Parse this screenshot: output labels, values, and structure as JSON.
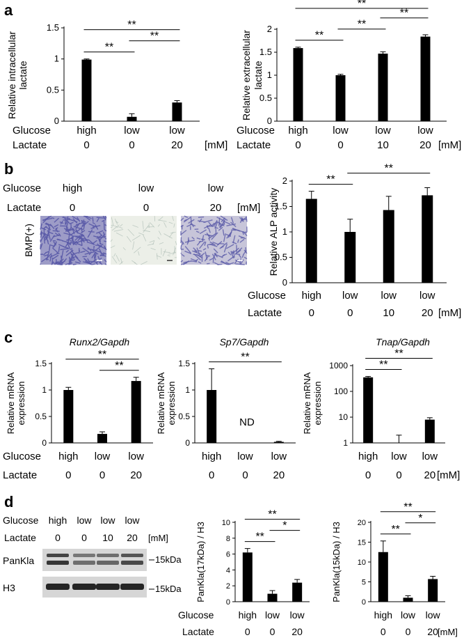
{
  "panels": {
    "a": "a",
    "b": "b",
    "c": "c",
    "d": "d"
  },
  "rows": {
    "glucose": "Glucose",
    "lactate": "Lactate",
    "unit": "[mM]"
  },
  "bar_charts": [
    {
      "id": "a1",
      "ylabel": [
        "Relative intracellular",
        "lactate"
      ],
      "yticks": [
        "0",
        "0.5",
        "1",
        "1.5"
      ],
      "ylim": [
        0,
        1.5
      ],
      "glucose": [
        "high",
        "low",
        "low"
      ],
      "lactate": [
        "0",
        "0",
        "20"
      ],
      "values": [
        0.99,
        0.07,
        0.3
      ],
      "errors": [
        0.01,
        0.05,
        0.03
      ],
      "sig": [
        {
          "from": 0,
          "to": 1,
          "label": "**"
        },
        {
          "from": 0,
          "to": 2,
          "label": "**"
        },
        {
          "from": 1,
          "to": 2,
          "label": "**"
        }
      ]
    },
    {
      "id": "a2",
      "ylabel": [
        "Relative extracellular",
        "lactate"
      ],
      "yticks": [
        "0",
        "0.5",
        "1",
        "1.5",
        "2"
      ],
      "ylim": [
        0,
        2
      ],
      "glucose": [
        "high",
        "low",
        "low",
        "low"
      ],
      "lactate": [
        "0",
        "0",
        "10",
        "20"
      ],
      "values": [
        1.59,
        1.0,
        1.47,
        1.84
      ],
      "errors": [
        0.02,
        0.02,
        0.04,
        0.04
      ],
      "sig": [
        {
          "from": 0,
          "to": 1,
          "label": "**"
        },
        {
          "from": 0,
          "to": 3,
          "label": "**"
        },
        {
          "from": 1,
          "to": 2,
          "label": "**"
        },
        {
          "from": 2,
          "to": 3,
          "label": "**"
        }
      ]
    },
    {
      "id": "b",
      "ylabel": [
        "Relative ALP activity"
      ],
      "yticks": [
        "0",
        "0.5",
        "1",
        "1.5",
        "2"
      ],
      "ylim": [
        0,
        2
      ],
      "glucose": [
        "high",
        "low",
        "low",
        "low"
      ],
      "lactate": [
        "0",
        "0",
        "10",
        "20"
      ],
      "values": [
        1.65,
        1.0,
        1.43,
        1.72
      ],
      "errors": [
        0.15,
        0.25,
        0.27,
        0.15
      ],
      "sig": [
        {
          "from": 0,
          "to": 1,
          "label": "**"
        },
        {
          "from": 1,
          "to": 3,
          "label": "**"
        }
      ]
    },
    {
      "id": "c1",
      "title": "Runx2/Gapdh",
      "ylabel": [
        "Relative mRNA",
        "expression"
      ],
      "yticks": [
        "0",
        "0.5",
        "1",
        "1.5"
      ],
      "ylim": [
        0,
        1.5
      ],
      "glucose": [
        "high",
        "low",
        "low"
      ],
      "lactate": [
        "0",
        "0",
        "20"
      ],
      "values": [
        1.0,
        0.17,
        1.17
      ],
      "errors": [
        0.05,
        0.04,
        0.07
      ],
      "sig": [
        {
          "from": 0,
          "to": 2,
          "label": "**"
        },
        {
          "from": 1,
          "to": 2,
          "label": "**"
        }
      ]
    },
    {
      "id": "c2",
      "title": "Sp7/Gapdh",
      "ylabel": [
        "Relative mRNA",
        "expression"
      ],
      "yticks": [
        "0",
        "0.5",
        "1",
        "1.5"
      ],
      "ylim": [
        0,
        1.5
      ],
      "glucose": [
        "high",
        "low",
        "low"
      ],
      "lactate": [
        "0",
        "0",
        "20"
      ],
      "values": [
        1.0,
        0,
        0.02
      ],
      "errors": [
        0.4,
        0,
        0.01
      ],
      "nd": "ND",
      "sig": [
        {
          "from": 0,
          "to": 2,
          "label": "**"
        }
      ]
    },
    {
      "id": "c3",
      "title": "Tnap/Gapdh",
      "ylabel": [
        "Relative mRNA",
        "expression"
      ],
      "yticks": [
        "1",
        "10",
        "100",
        "1000"
      ],
      "ylim": [
        1,
        1000
      ],
      "scale": "log",
      "glucose": [
        "high",
        "low",
        "low"
      ],
      "lactate": [
        "0",
        "0",
        "20"
      ],
      "values": [
        350,
        1,
        8
      ],
      "errors": [
        30,
        1,
        1.5
      ],
      "sig": [
        {
          "from": 0,
          "to": 1,
          "label": "**"
        },
        {
          "from": 0,
          "to": 2,
          "label": "**"
        }
      ]
    },
    {
      "id": "d1",
      "ylabel": [
        "PanKla(17kDa) / H3"
      ],
      "yticks": [
        "0",
        "2",
        "4",
        "6",
        "8",
        "10"
      ],
      "ylim": [
        0,
        10
      ],
      "glucose": [
        "high",
        "low",
        "low"
      ],
      "lactate": [
        "0",
        "0",
        "20"
      ],
      "values": [
        6.2,
        1.0,
        2.4
      ],
      "errors": [
        0.5,
        0.4,
        0.4
      ],
      "sig": [
        {
          "from": 0,
          "to": 1,
          "label": "**"
        },
        {
          "from": 0,
          "to": 2,
          "label": "**"
        },
        {
          "from": 1,
          "to": 2,
          "label": "*"
        }
      ]
    },
    {
      "id": "d2",
      "ylabel": [
        "PanKla(15kDa) / H3"
      ],
      "yticks": [
        "0",
        "5",
        "10",
        "15",
        "20"
      ],
      "ylim": [
        0,
        20
      ],
      "glucose": [
        "high",
        "low",
        "low"
      ],
      "lactate": [
        "0",
        "0",
        "20"
      ],
      "values": [
        12.5,
        1.0,
        5.7
      ],
      "errors": [
        2.8,
        0.5,
        0.7
      ],
      "sig": [
        {
          "from": 0,
          "to": 1,
          "label": "**"
        },
        {
          "from": 0,
          "to": 2,
          "label": "**"
        },
        {
          "from": 1,
          "to": 2,
          "label": "*"
        }
      ]
    }
  ],
  "staining": {
    "row_label": "BMP(+)",
    "glucose": [
      "high",
      "low",
      "low"
    ],
    "lactate": [
      "0",
      "0",
      "20"
    ],
    "stain_color": "#5a5aa8",
    "density": [
      0.95,
      0.12,
      0.6
    ]
  },
  "western": {
    "glucose": [
      "high",
      "low",
      "low",
      "low"
    ],
    "lactate": [
      "0",
      "0",
      "10",
      "20"
    ],
    "bands": [
      {
        "name": "PanKla",
        "marker": "15kDa"
      },
      {
        "name": "H3",
        "marker": "15kDa"
      }
    ]
  }
}
